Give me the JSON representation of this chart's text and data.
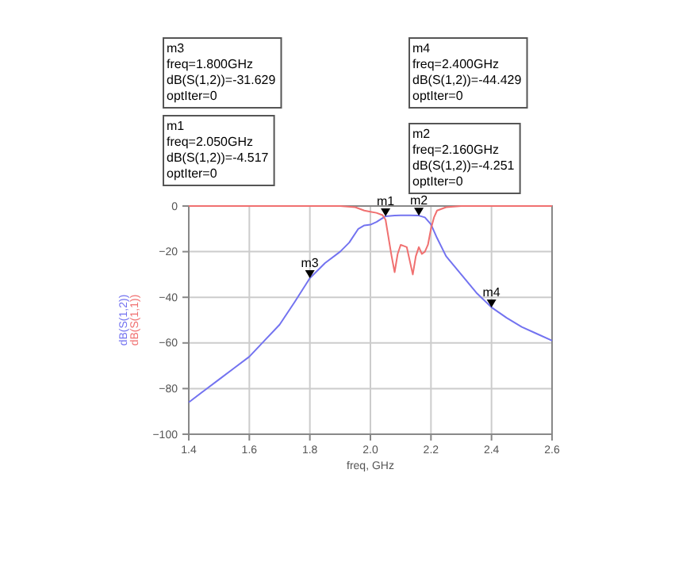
{
  "chart_data": {
    "type": "line",
    "xlabel": "freq, GHz",
    "xlim": [
      1.4,
      2.6
    ],
    "xticks": [
      1.4,
      1.6,
      1.8,
      {
        "value": 2,
        "label": "2.0"
      },
      2.2,
      2.4,
      2.6
    ],
    "ylim": [
      -100,
      0
    ],
    "yticks": [
      -100,
      -80,
      -60,
      -40,
      -20,
      0
    ],
    "grid": true,
    "line_style": "solid",
    "marker": "none",
    "series": [
      {
        "name": "dB(S(1,2))",
        "color": "#7373f0",
        "x": [
          1.4,
          1.45,
          1.5,
          1.55,
          1.6,
          1.65,
          1.7,
          1.75,
          1.8,
          1.85,
          1.9,
          1.93,
          1.96,
          1.98,
          2.0,
          2.02,
          2.05,
          2.08,
          2.1,
          2.13,
          2.16,
          2.18,
          2.2,
          2.22,
          2.25,
          2.3,
          2.35,
          2.4,
          2.45,
          2.5,
          2.55,
          2.6
        ],
        "values": [
          -86,
          -81,
          -76,
          -71,
          -66,
          -59,
          -52,
          -42,
          -31.6,
          -25,
          -20,
          -16,
          -10,
          -8.5,
          -8.2,
          -7,
          -4.5,
          -4.2,
          -4.1,
          -4.1,
          -4.2,
          -5,
          -8,
          -14,
          -22,
          -30,
          -38,
          -44.4,
          -49,
          -53,
          -56,
          -59
        ]
      },
      {
        "name": "dB(S(1,1))",
        "color": "#f07070",
        "x": [
          1.4,
          1.7,
          1.9,
          1.95,
          1.98,
          2.0,
          2.02,
          2.04,
          2.05,
          2.06,
          2.07,
          2.08,
          2.09,
          2.1,
          2.12,
          2.13,
          2.14,
          2.15,
          2.16,
          2.17,
          2.18,
          2.19,
          2.2,
          2.21,
          2.22,
          2.25,
          2.3,
          2.6
        ],
        "values": [
          0,
          0,
          0,
          -0.5,
          -2,
          -2.5,
          -3,
          -4,
          -6,
          -14,
          -22,
          -29,
          -21,
          -17,
          -18,
          -24,
          -30,
          -22,
          -18,
          -21,
          -20,
          -17,
          -10,
          -5,
          -2,
          -0.5,
          0,
          0
        ]
      }
    ],
    "annotations": [
      {
        "text": "m1",
        "x": 2.05,
        "y": -4.517
      },
      {
        "text": "m2",
        "x": 2.16,
        "y": -4.251
      },
      {
        "text": "m3",
        "x": 1.8,
        "y": -31.629
      },
      {
        "text": "m4",
        "x": 2.4,
        "y": -44.429
      },
      "m3\nfreq=1.800GHz\ndB(S(1,2))=-31.629\noptIter=0",
      "m4\nfreq=2.400GHz\ndB(S(1,2))=-44.429\noptIter=0",
      "m1\nfreq=2.050GHz\ndB(S(1,2))=-4.517\noptIter=0",
      "m2\nfreq=2.160GHz\ndB(S(1,2))=-4.251\noptIter=0"
    ]
  }
}
